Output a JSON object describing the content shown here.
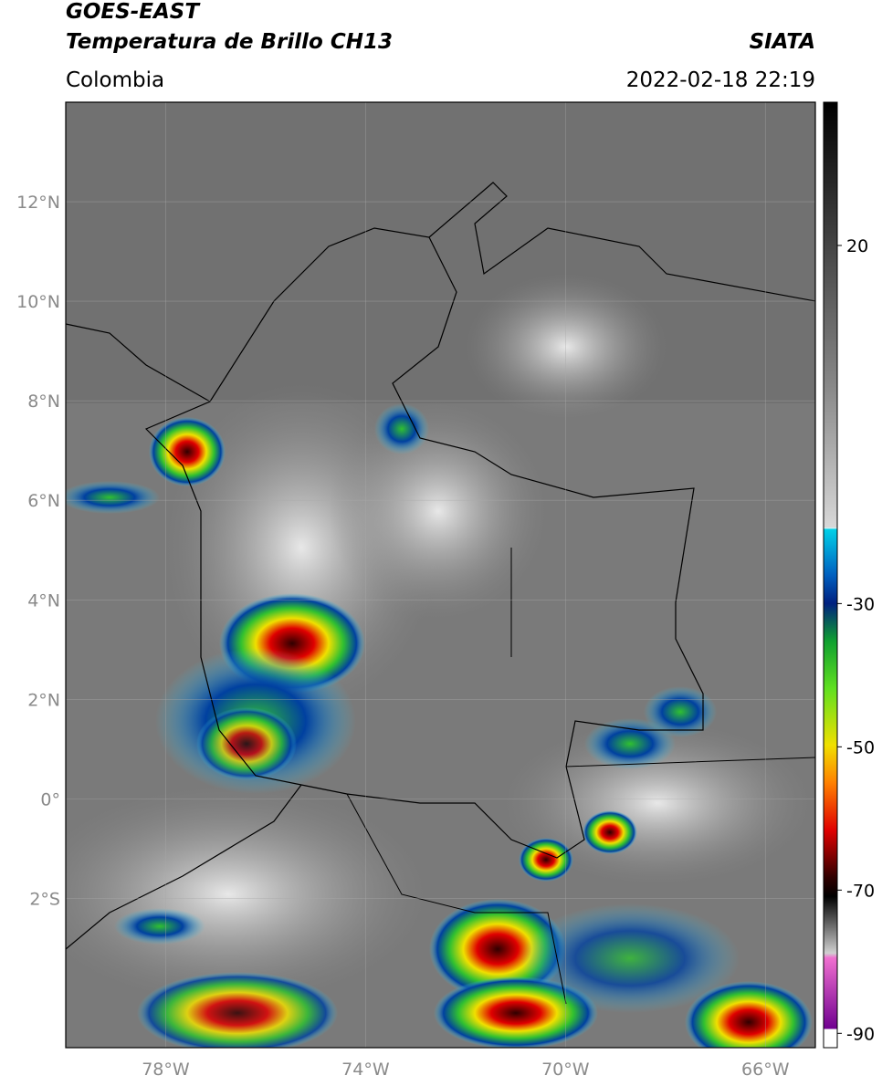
{
  "header": {
    "title": "GOES-EAST",
    "subtitle": "Temperatura de Brillo CH13",
    "source": "SIATA",
    "region": "Colombia",
    "datetime": "2022-02-18 22:19"
  },
  "map": {
    "lon_range": [
      -80,
      -65
    ],
    "lat_range": [
      -5,
      14
    ],
    "lat_ticks": [
      {
        "value": 12,
        "label": "12°N"
      },
      {
        "value": 10,
        "label": "10°N"
      },
      {
        "value": 8,
        "label": "8°N"
      },
      {
        "value": 6,
        "label": "6°N"
      },
      {
        "value": 4,
        "label": "4°N"
      },
      {
        "value": 2,
        "label": "2°N"
      },
      {
        "value": 0,
        "label": "0°"
      },
      {
        "value": -2,
        "label": "2°S"
      }
    ],
    "lon_ticks": [
      {
        "value": -78,
        "label": "78°W"
      },
      {
        "value": -74,
        "label": "74°W"
      },
      {
        "value": -70,
        "label": "70°W"
      },
      {
        "value": -66,
        "label": "66°W"
      }
    ]
  },
  "colorbar": {
    "range": [
      40,
      -92
    ],
    "ticks": [
      20,
      -30,
      -50,
      -70,
      -90
    ]
  }
}
